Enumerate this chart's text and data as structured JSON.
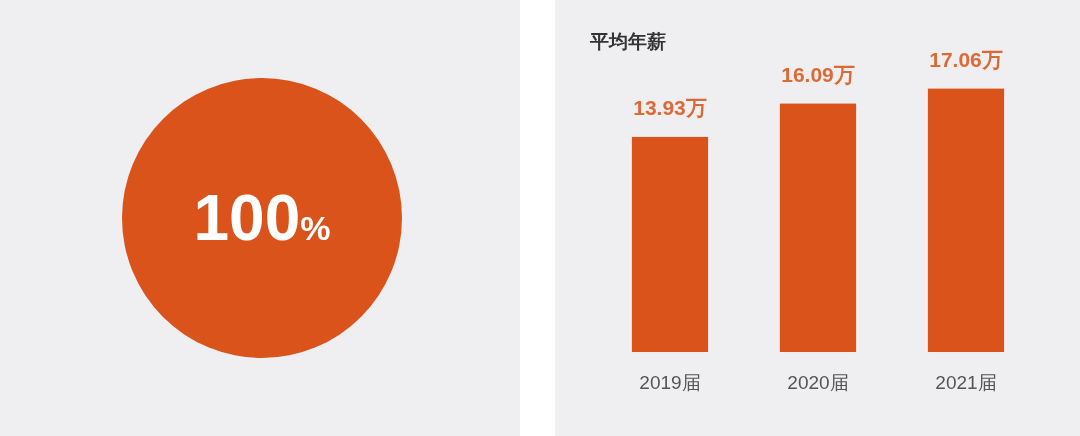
{
  "chart_data": [
    {
      "type": "pie",
      "categories": [
        null
      ],
      "values": [
        100
      ],
      "colors": [
        "#d9531b"
      ],
      "value_labels": [
        "100%"
      ]
    },
    {
      "type": "bar",
      "title": "平均年薪",
      "categories": [
        "2019届",
        "2020届",
        "2021届"
      ],
      "values": [
        13.93,
        16.09,
        17.06
      ],
      "color": "#d9531b",
      "value_labels": [
        "13.93万",
        "16.09万",
        "17.06万"
      ],
      "tick_labels": "x"
    }
  ]
}
